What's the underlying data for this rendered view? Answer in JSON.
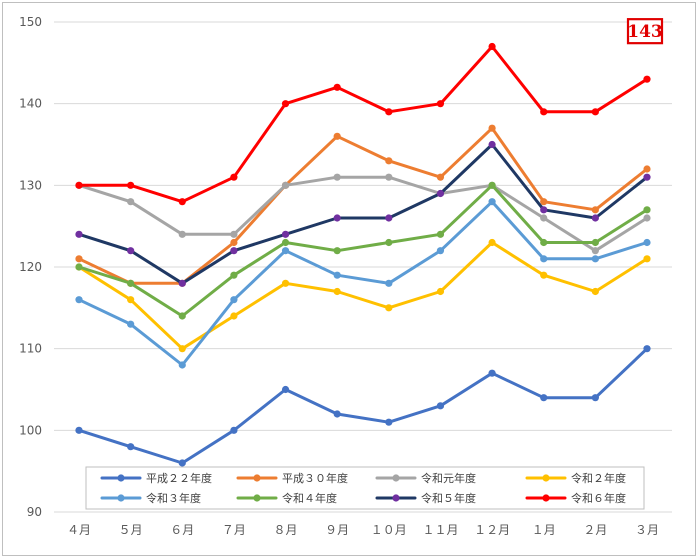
{
  "chart_data": {
    "type": "line",
    "title": "",
    "xlabel": "",
    "ylabel": "",
    "categories": [
      "４月",
      "５月",
      "６月",
      "７月",
      "８月",
      "９月",
      "１０月",
      "１１月",
      "１２月",
      "１月",
      "２月",
      "３月"
    ],
    "ylim": [
      90,
      150
    ],
    "yticks": [
      90,
      100,
      110,
      120,
      130,
      140,
      150
    ],
    "grid": true,
    "legend_position": "bottom-inside",
    "series": [
      {
        "name": "平成２２年度",
        "color": "#4472c4",
        "values": [
          100,
          98,
          96,
          100,
          105,
          102,
          101,
          103,
          107,
          104,
          104,
          110
        ]
      },
      {
        "name": "平成３０年度",
        "color": "#ed7d31",
        "values": [
          121,
          118,
          118,
          123,
          130,
          136,
          133,
          131,
          137,
          128,
          127,
          132
        ]
      },
      {
        "name": "令和元年度",
        "color": "#a5a5a5",
        "values": [
          130,
          128,
          124,
          124,
          130,
          131,
          131,
          129,
          130,
          126,
          122,
          126
        ]
      },
      {
        "name": "令和２年度",
        "color": "#ffc000",
        "values": [
          120,
          116,
          110,
          114,
          118,
          117,
          115,
          117,
          123,
          119,
          117,
          121
        ]
      },
      {
        "name": "令和３年度",
        "color": "#5b9bd5",
        "values": [
          116,
          113,
          108,
          116,
          122,
          119,
          118,
          122,
          128,
          121,
          121,
          123
        ]
      },
      {
        "name": "令和４年度",
        "color": "#70ad47",
        "values": [
          120,
          118,
          114,
          119,
          123,
          122,
          123,
          124,
          130,
          123,
          123,
          127
        ]
      },
      {
        "name": "令和５年度",
        "color": "#1f3864",
        "marker_color": "#7030a0",
        "values": [
          124,
          122,
          118,
          122,
          124,
          126,
          126,
          129,
          135,
          127,
          126,
          131
        ]
      },
      {
        "name": "令和６年度",
        "color": "#ff0000",
        "values": [
          130,
          130,
          128,
          131,
          140,
          142,
          139,
          140,
          147,
          139,
          139,
          143
        ]
      }
    ],
    "annotations": [
      {
        "text": "143",
        "series": "令和６年度",
        "category": "３月",
        "color": "#e00000"
      }
    ]
  }
}
